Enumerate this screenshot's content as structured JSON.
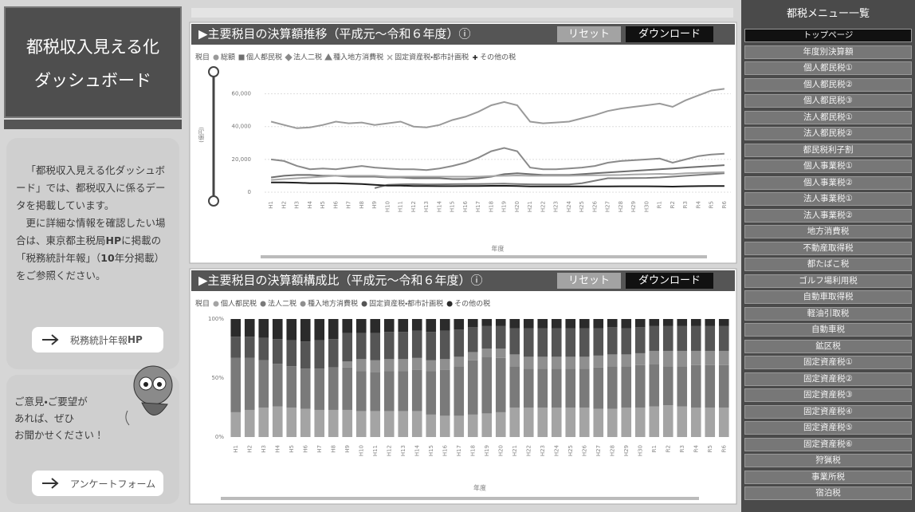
{
  "sidebar": {
    "title_lines": [
      "都税収入見える化",
      "ダッシュボード"
    ],
    "intro": [
      "「都税収入見える化ダッシュボード」では、都税収入に係るデータを掲載しています。",
      [
        "更に詳細な情報を確認したい場合は、東京都主税局",
        "HP",
        "に掲載の「税務統計年報」（",
        "10",
        "年分掲載）をご参照ください。"
      ]
    ],
    "link_button": [
      "税務統計年報",
      "HP"
    ],
    "feedback": [
      "ご意見・ご要望が",
      "あれば、ぜひ",
      "お聞かせください！"
    ],
    "survey_button": "アンケートフォーム"
  },
  "menu": {
    "title": "都税メニュー一覧",
    "items": [
      "トップページ",
      "年度別決算額",
      "個人都民税①",
      "個人都民税②",
      "個人都民税③",
      "法人都民税①",
      "法人都民税②",
      "都民税利子割",
      "個人事業税①",
      "個人事業税②",
      "法人事業税①",
      "法人事業税②",
      "地方消費税",
      "不動産取得税",
      "都たばこ税",
      "ゴルフ場利用税",
      "自動車取得税",
      "軽油引取税",
      "自動車税",
      "鉱区税",
      "固定資産税①",
      "固定資産税②",
      "固定資産税③",
      "固定資産税④",
      "固定資産税⑤",
      "固定資産税⑥",
      "狩猟税",
      "事業所税",
      "宿泊税"
    ]
  },
  "chart_data": [
    {
      "type": "line",
      "title": "▶主要税目の決算額推移（平成元～令和６年度）ⓘ",
      "buttons": [
        "リセット",
        "ダウンロード"
      ],
      "legend_title": "税目",
      "y_label": "(億円)",
      "x_label": "年度",
      "grid": true,
      "categories": [
        "H1",
        "H2",
        "H3",
        "H4",
        "H5",
        "H6",
        "H7",
        "H8",
        "H9",
        "H10",
        "H11",
        "H12",
        "H13",
        "H14",
        "H15",
        "H16",
        "H17",
        "H18",
        "H19",
        "H20",
        "H21",
        "H22",
        "H23",
        "H24",
        "H25",
        "H26",
        "H27",
        "H28",
        "H29",
        "H30",
        "R1",
        "R2",
        "R3",
        "R4",
        "R5",
        "R6"
      ],
      "ylim": [
        0,
        70000
      ],
      "yticks": [
        0,
        {
          "value": 20000,
          "label": "20,000"
        },
        {
          "value": 40000,
          "label": "40,000"
        },
        {
          "value": 60000,
          "label": "60,000"
        }
      ],
      "series": [
        {
          "name": "総額",
          "marker": "circle",
          "color": "#9a9a9a",
          "values": [
            43000,
            41000,
            39000,
            39500,
            41000,
            43000,
            42000,
            42500,
            41000,
            42000,
            43000,
            40000,
            39500,
            41000,
            44000,
            46000,
            49000,
            53000,
            55000,
            53000,
            43000,
            42000,
            42500,
            43000,
            45000,
            47000,
            49500,
            51000,
            52000,
            53000,
            54000,
            52000,
            56000,
            59000,
            62000,
            63000
          ]
        },
        {
          "name": "個人都民税",
          "marker": "square",
          "color": "#6f6f6f",
          "values": [
            9000,
            10000,
            10500,
            10500,
            10000,
            10000,
            9500,
            9500,
            9500,
            9000,
            9000,
            8500,
            8500,
            8500,
            8000,
            8000,
            8500,
            9500,
            11000,
            11500,
            11000,
            10500,
            10500,
            10500,
            11000,
            11500,
            12000,
            12500,
            13000,
            13500,
            14000,
            14500,
            15000,
            15500,
            16000,
            16500
          ]
        },
        {
          "name": "法人二税",
          "marker": "diamond",
          "color": "#8a8a8a",
          "values": [
            20000,
            19000,
            16000,
            14000,
            14500,
            14000,
            15000,
            16000,
            15000,
            14500,
            14000,
            14000,
            13500,
            14500,
            16000,
            18000,
            21000,
            25000,
            27000,
            25000,
            15000,
            14000,
            14000,
            14500,
            15000,
            16000,
            18000,
            19000,
            19500,
            20000,
            20500,
            18000,
            20000,
            22000,
            23000,
            23500
          ]
        },
        {
          "name": "種入地方消費税",
          "marker": "triangle",
          "color": "#7c7c7c",
          "values": [
            null,
            null,
            null,
            null,
            null,
            null,
            null,
            null,
            2500,
            4500,
            4800,
            4900,
            4700,
            4800,
            4900,
            5000,
            5000,
            5100,
            5200,
            5000,
            4800,
            4700,
            4700,
            4700,
            5500,
            7000,
            8500,
            8500,
            8600,
            8700,
            9000,
            9500,
            10000,
            10500,
            11000,
            11500
          ]
        },
        {
          "name": "固定資産税・都市計画税",
          "marker": "x",
          "color": "#a8a8a8",
          "values": [
            7500,
            8000,
            8500,
            9000,
            9500,
            10000,
            10000,
            10000,
            10000,
            9500,
            9500,
            9500,
            9500,
            9500,
            9500,
            9500,
            9500,
            9800,
            10000,
            10200,
            10000,
            10000,
            10000,
            10000,
            10200,
            10300,
            10400,
            10500,
            10800,
            11000,
            11200,
            11000,
            11500,
            11800,
            12000,
            12200
          ]
        },
        {
          "name": "その他の税",
          "marker": "plus",
          "color": "#1e1e1e",
          "values": [
            6000,
            6000,
            5800,
            5500,
            5500,
            5500,
            5200,
            5000,
            4500,
            4000,
            4000,
            3800,
            3800,
            3700,
            3700,
            3800,
            3800,
            3900,
            3900,
            3800,
            3500,
            3500,
            3500,
            3500,
            3500,
            3500,
            3500,
            3600,
            3600,
            3600,
            3500,
            3400,
            3600,
            3700,
            3800,
            3800
          ]
        }
      ]
    },
    {
      "type": "bar",
      "stacked": true,
      "title": "▶主要税目の決算額構成比（平成元～令和６年度）ⓘ",
      "buttons": [
        "リセット",
        "ダウンロード"
      ],
      "legend_title": "税目",
      "x_label": "年度",
      "categories": [
        "H1",
        "H2",
        "H3",
        "H4",
        "H5",
        "H6",
        "H7",
        "H8",
        "H9",
        "H10",
        "H11",
        "H12",
        "H13",
        "H14",
        "H15",
        "H16",
        "H17",
        "H18",
        "H19",
        "H20",
        "H21",
        "H22",
        "H23",
        "H24",
        "H25",
        "H26",
        "H27",
        "H28",
        "H29",
        "H30",
        "R1",
        "R2",
        "R3",
        "R4",
        "R5",
        "R6"
      ],
      "ylim": [
        0,
        100
      ],
      "yticks": [
        {
          "value": 0,
          "label": "0%"
        },
        {
          "value": 50,
          "label": "50%"
        },
        {
          "value": 100,
          "label": "100%"
        }
      ],
      "series": [
        {
          "name": "個人都民税",
          "marker": "circle",
          "color": "#a4a4a4",
          "values": [
            21,
            23,
            25,
            26,
            25,
            24,
            23,
            23,
            23,
            22,
            22,
            22,
            22,
            22,
            19,
            18,
            18,
            19,
            20,
            21,
            25,
            25,
            25,
            25,
            25,
            25,
            24,
            24,
            25,
            25,
            26,
            27,
            26,
            25,
            25,
            25
          ]
        },
        {
          "name": "法人二税",
          "marker": "circle",
          "color": "#7a7a7a",
          "values": [
            46,
            44,
            40,
            36,
            35,
            34,
            35,
            36,
            36,
            34,
            33,
            34,
            34,
            35,
            37,
            39,
            42,
            46,
            48,
            46,
            35,
            33,
            33,
            33,
            33,
            33,
            35,
            36,
            35,
            36,
            36,
            33,
            34,
            36,
            36,
            36
          ]
        },
        {
          "name": "種入地方消費税",
          "marker": "circle",
          "color": "#8f8f8f",
          "values": [
            0,
            0,
            0,
            0,
            0,
            0,
            0,
            0,
            5,
            10,
            10,
            10,
            10,
            10,
            9,
            9,
            8,
            7,
            7,
            8,
            10,
            10,
            10,
            10,
            10,
            10,
            10,
            10,
            10,
            10,
            11,
            13,
            13,
            12,
            12,
            12
          ]
        },
        {
          "name": "固定資産税・都市計画税",
          "marker": "circle",
          "color": "#555555",
          "values": [
            18,
            18,
            19,
            21,
            22,
            23,
            24,
            24,
            24,
            22,
            23,
            23,
            23,
            23,
            24,
            24,
            23,
            21,
            19,
            19,
            22,
            24,
            24,
            24,
            24,
            24,
            23,
            23,
            22,
            22,
            21,
            21,
            21,
            21,
            21,
            21
          ]
        },
        {
          "name": "その他の税",
          "marker": "circle",
          "color": "#2b2b2b",
          "values": [
            15,
            15,
            16,
            17,
            18,
            19,
            18,
            17,
            12,
            12,
            12,
            11,
            11,
            10,
            11,
            10,
            9,
            7,
            6,
            6,
            8,
            8,
            8,
            8,
            8,
            8,
            8,
            7,
            8,
            7,
            6,
            6,
            6,
            6,
            6,
            6
          ]
        }
      ]
    }
  ]
}
